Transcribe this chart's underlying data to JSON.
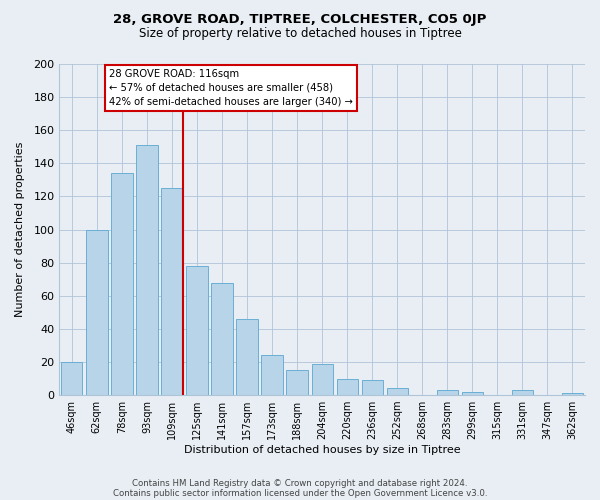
{
  "title_line1": "28, GROVE ROAD, TIPTREE, COLCHESTER, CO5 0JP",
  "title_line2": "Size of property relative to detached houses in Tiptree",
  "xlabel": "Distribution of detached houses by size in Tiptree",
  "ylabel": "Number of detached properties",
  "categories": [
    "46sqm",
    "62sqm",
    "78sqm",
    "93sqm",
    "109sqm",
    "125sqm",
    "141sqm",
    "157sqm",
    "173sqm",
    "188sqm",
    "204sqm",
    "220sqm",
    "236sqm",
    "252sqm",
    "268sqm",
    "283sqm",
    "299sqm",
    "315sqm",
    "331sqm",
    "347sqm",
    "362sqm"
  ],
  "values": [
    20,
    100,
    134,
    151,
    125,
    78,
    68,
    46,
    24,
    15,
    19,
    10,
    9,
    4,
    0,
    3,
    2,
    0,
    3,
    0,
    1
  ],
  "bar_color": "#b8d4e8",
  "bar_edge_color": "#6aafd6",
  "marker_bin_index": 4,
  "annotation_line1": "28 GROVE ROAD: 116sqm",
  "annotation_line2": "← 57% of detached houses are smaller (458)",
  "annotation_line3": "42% of semi-detached houses are larger (340) →",
  "annotation_box_color": "#ffffff",
  "annotation_box_edge": "#cc0000",
  "marker_line_color": "#cc0000",
  "ylim": [
    0,
    200
  ],
  "yticks": [
    0,
    20,
    40,
    60,
    80,
    100,
    120,
    140,
    160,
    180,
    200
  ],
  "footer_line1": "Contains HM Land Registry data © Crown copyright and database right 2024.",
  "footer_line2": "Contains public sector information licensed under the Open Government Licence v3.0.",
  "bg_color": "#e8eef4",
  "plot_bg_color": "#e8eef4"
}
